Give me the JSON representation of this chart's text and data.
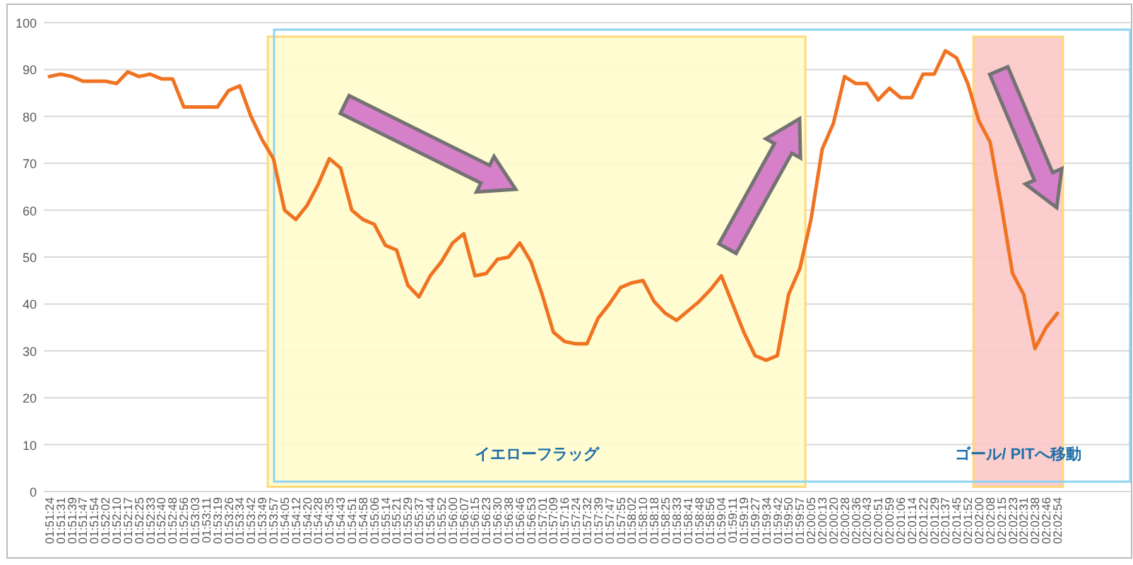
{
  "chart_data": {
    "type": "line",
    "categories": [
      "01:51:24",
      "01:51:31",
      "01:51:39",
      "01:51:47",
      "01:51:54",
      "01:52:02",
      "01:52:10",
      "01:52:17",
      "01:52:25",
      "01:52:33",
      "01:52:40",
      "01:52:48",
      "01:52:56",
      "01:53:03",
      "01:53:11",
      "01:53:19",
      "01:53:26",
      "01:53:34",
      "01:53:42",
      "01:53:49",
      "01:53:57",
      "01:54:05",
      "01:54:12",
      "01:54:20",
      "01:54:28",
      "01:54:35",
      "01:54:43",
      "01:54:51",
      "01:54:58",
      "01:55:06",
      "01:55:14",
      "01:55:21",
      "01:55:29",
      "01:55:37",
      "01:55:44",
      "01:55:52",
      "01:56:00",
      "01:56:07",
      "01:56:15",
      "01:56:23",
      "01:56:30",
      "01:56:38",
      "01:56:46",
      "01:56:53",
      "01:57:01",
      "01:57:09",
      "01:57:16",
      "01:57:24",
      "01:57:32",
      "01:57:39",
      "01:57:47",
      "01:57:55",
      "01:58:02",
      "01:58:10",
      "01:58:18",
      "01:58:25",
      "01:58:33",
      "01:58:41",
      "01:58:48",
      "01:58:56",
      "01:59:04",
      "01:59:11",
      "01:59:19",
      "01:59:27",
      "01:59:34",
      "01:59:42",
      "01:59:50",
      "01:59:57",
      "02:00:05",
      "02:00:13",
      "02:00:20",
      "02:00:28",
      "02:00:36",
      "02:00:43",
      "02:00:51",
      "02:00:59",
      "02:01:06",
      "02:01:14",
      "02:01:22",
      "02:01:29",
      "02:01:37",
      "02:01:45",
      "02:01:52",
      "02:02:00",
      "02:02:08",
      "02:02:15",
      "02:02:23",
      "02:02:31",
      "02:02:38",
      "02:02:46",
      "02:02:54"
    ],
    "series": [
      {
        "color": "#f07322",
        "values": [
          88.5,
          89,
          88.5,
          87.5,
          87.5,
          87.5,
          87,
          89.5,
          88.5,
          89,
          88,
          88,
          82,
          82,
          82,
          82,
          85.5,
          86.5,
          80,
          75,
          71,
          60,
          58,
          61,
          65.5,
          71,
          69,
          60,
          58,
          57,
          52.5,
          51.5,
          44,
          41.5,
          46,
          49,
          53,
          55,
          46,
          46.5,
          49.5,
          50,
          53,
          49,
          42,
          34,
          32,
          31.5,
          31.5,
          37,
          40,
          43.5,
          44.5,
          45,
          40.5,
          38,
          36.5,
          38.5,
          40.5,
          43,
          46,
          40,
          34,
          29,
          28,
          29,
          42,
          47.5,
          58,
          73,
          78.5,
          88.5,
          87,
          87,
          83.5,
          86,
          84,
          84,
          89,
          89,
          94,
          92.5,
          87,
          79,
          74.5,
          61,
          46.5,
          42,
          30.5,
          35,
          38
        ]
      }
    ],
    "ylim": [
      0,
      100
    ],
    "yticks": [
      0,
      10,
      20,
      30,
      40,
      50,
      60,
      70,
      80,
      90,
      100
    ],
    "grid": "y",
    "bands": [
      {
        "axis": "x",
        "from": "01:53:57",
        "to": "01:59:57",
        "label": "イエローフラッグ",
        "color": "#fffccc"
      },
      {
        "axis": "x",
        "from": "02:02:00",
        "to": "02:02:54",
        "label": "ゴール/ PITへ移動",
        "color": "#fcc8c8"
      }
    ]
  }
}
